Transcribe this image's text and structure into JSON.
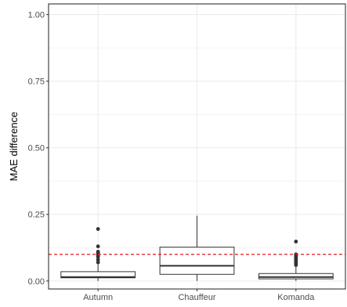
{
  "chart_data": {
    "type": "box",
    "title": "",
    "xlabel": "",
    "ylabel": "MAE difference",
    "ylim": [
      -0.03,
      1.04
    ],
    "yticks": [
      0.0,
      0.25,
      0.5,
      0.75,
      1.0
    ],
    "ytick_labels": [
      "0.00",
      "0.25",
      "0.50",
      "0.75",
      "1.00"
    ],
    "categories": [
      "Autumn",
      "Chauffeur",
      "Komanda"
    ],
    "boxes": [
      {
        "category": "Autumn",
        "whisker_low": 0.0,
        "q1": 0.012,
        "median": 0.015,
        "q3": 0.035,
        "whisker_high": 0.065,
        "outliers": [
          0.07,
          0.08,
          0.09,
          0.095,
          0.1,
          0.105,
          0.11,
          0.13,
          0.195
        ]
      },
      {
        "category": "Chauffeur",
        "whisker_low": 0.0,
        "q1": 0.025,
        "median": 0.057,
        "q3": 0.127,
        "whisker_high": 0.245,
        "outliers": []
      },
      {
        "category": "Komanda",
        "whisker_low": 0.0,
        "q1": 0.008,
        "median": 0.015,
        "q3": 0.028,
        "whisker_high": 0.055,
        "outliers": [
          0.06,
          0.065,
          0.07,
          0.075,
          0.08,
          0.085,
          0.09,
          0.095,
          0.1,
          0.148
        ]
      }
    ],
    "reference_line": {
      "y": 0.1,
      "color": "#e31a1c",
      "style": "dashed"
    },
    "grid": true,
    "panel_background": "#ffffff",
    "grid_color": "#ebebeb",
    "box_color": "#333333"
  }
}
